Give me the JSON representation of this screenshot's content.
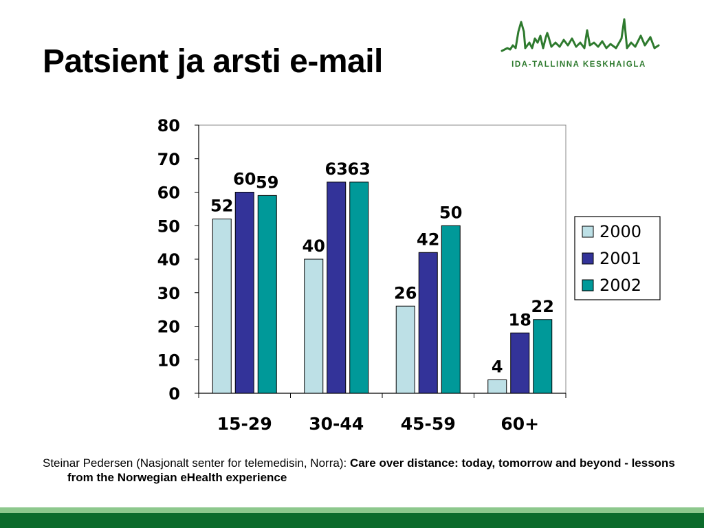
{
  "slide": {
    "title": "Patsient ja arsti e-mail"
  },
  "logo": {
    "text": "IDA-TALLINNA KESKHAIGLA",
    "color": "#2e7a2e"
  },
  "citation": {
    "author": "Steinar Pedersen (Nasjonalt senter for telemedisin, Norra): ",
    "title": "Care over distance: today, tomorrow and beyond - lessons from the Norwegian eHealth experience"
  },
  "chart_data": {
    "type": "bar",
    "categories": [
      "15-29",
      "30-44",
      "45-59",
      "60+"
    ],
    "series": [
      {
        "name": "2000",
        "color": "#bde0e6",
        "values": [
          52,
          40,
          26,
          4
        ]
      },
      {
        "name": "2001",
        "color": "#333399",
        "values": [
          60,
          63,
          42,
          18
        ]
      },
      {
        "name": "2002",
        "color": "#009999",
        "values": [
          59,
          63,
          50,
          22
        ]
      }
    ],
    "yticks": [
      "0",
      "10",
      "20",
      "30",
      "40",
      "50",
      "60",
      "70",
      "80"
    ],
    "ylim": [
      0,
      80
    ],
    "title": "",
    "xlabel": "",
    "ylabel": "",
    "grid": false,
    "legend": "right",
    "data_labels": true
  },
  "footer_colors": {
    "light": "#8dc88d",
    "dark": "#0b6b2b"
  }
}
